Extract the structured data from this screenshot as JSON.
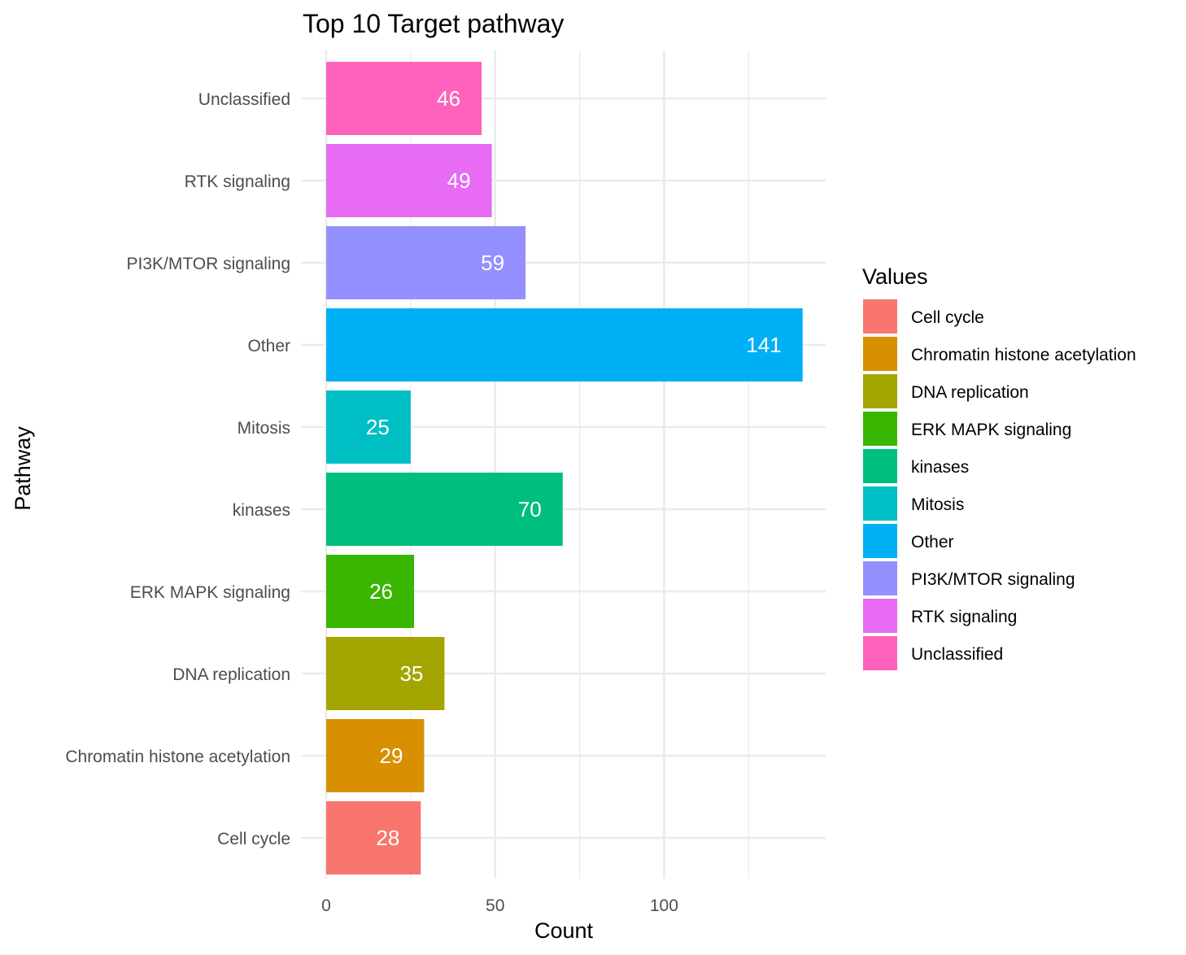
{
  "chart_data": {
    "type": "bar",
    "orientation": "horizontal",
    "title": "Top 10 Target pathway",
    "xlabel": "Count",
    "ylabel": "Pathway",
    "xlim": [
      0,
      148.2
    ],
    "x_ticks": [
      0,
      50,
      100
    ],
    "grid": true,
    "legend": {
      "title": "Values",
      "position": "right"
    },
    "categories": [
      "Cell cycle",
      "Chromatin histone acetylation",
      "DNA replication",
      "ERK MAPK signaling",
      "kinases",
      "Mitosis",
      "Other",
      "PI3K/MTOR signaling",
      "RTK signaling",
      "Unclassified"
    ],
    "values": [
      28,
      29,
      35,
      26,
      70,
      25,
      141,
      59,
      49,
      46
    ],
    "colors": [
      "#F8766D",
      "#D89000",
      "#A3A500",
      "#39B600",
      "#00BF7D",
      "#00BFC4",
      "#00B0F6",
      "#9590FF",
      "#E76BF3",
      "#FF62BC"
    ]
  }
}
